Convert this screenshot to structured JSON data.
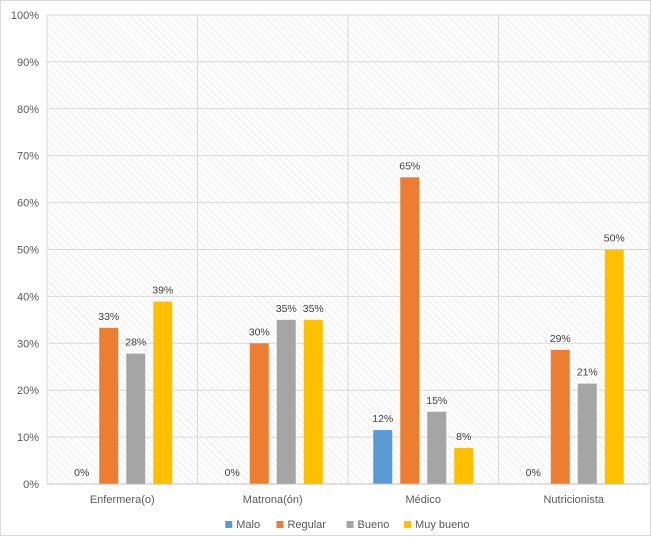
{
  "chart_data": {
    "type": "bar",
    "categories": [
      "Enfermera(o)",
      "Matrona(ón)",
      "Médico",
      "Nutricionista"
    ],
    "series": [
      {
        "name": "Malo",
        "color": "#5b9bd5",
        "values": [
          0,
          0,
          11.5,
          0
        ],
        "labels": [
          "0%",
          "0%",
          "12%",
          "0%"
        ]
      },
      {
        "name": "Regular",
        "color": "#ed7d31",
        "values": [
          33.3,
          30,
          65.4,
          28.6
        ],
        "labels": [
          "33%",
          "30%",
          "65%",
          "29%"
        ]
      },
      {
        "name": "Bueno",
        "color": "#a5a5a5",
        "values": [
          27.8,
          35,
          15.4,
          21.4
        ],
        "labels": [
          "28%",
          "35%",
          "15%",
          "21%"
        ]
      },
      {
        "name": "Muy bueno",
        "color": "#ffc000",
        "values": [
          38.9,
          35,
          7.7,
          50
        ],
        "labels": [
          "39%",
          "35%",
          "8%",
          "50%"
        ]
      }
    ],
    "yticks": [
      "0%",
      "10%",
      "20%",
      "30%",
      "40%",
      "50%",
      "60%",
      "70%",
      "80%",
      "90%",
      "100%"
    ],
    "ylim": [
      0,
      100
    ],
    "grid": true,
    "legend_position": "bottom"
  }
}
